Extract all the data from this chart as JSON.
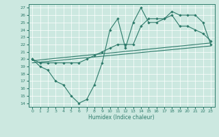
{
  "xlabel": "Humidex (Indice chaleur)",
  "xlim": [
    -0.5,
    23.5
  ],
  "ylim": [
    13.5,
    27.5
  ],
  "xticks": [
    0,
    1,
    2,
    3,
    4,
    5,
    6,
    7,
    8,
    9,
    10,
    11,
    12,
    13,
    14,
    15,
    16,
    17,
    18,
    19,
    20,
    21,
    22,
    23
  ],
  "yticks": [
    14,
    15,
    16,
    17,
    18,
    19,
    20,
    21,
    22,
    23,
    24,
    25,
    26,
    27
  ],
  "bg_color": "#cce8e0",
  "line_color": "#2d7a6a",
  "series": {
    "zigzag": {
      "x": [
        0,
        1,
        2,
        3,
        4,
        5,
        6,
        7,
        8,
        9,
        10,
        11,
        12,
        13,
        14,
        15,
        16,
        17,
        18,
        19,
        20,
        21,
        22,
        23
      ],
      "y": [
        20,
        19,
        18.5,
        17,
        16.5,
        15,
        14,
        14.5,
        16.5,
        19.5,
        24,
        25.5,
        21.5,
        25,
        27,
        25,
        25,
        25.5,
        26,
        24.5,
        24.5,
        24,
        23.5,
        22.5
      ]
    },
    "smooth": {
      "x": [
        0,
        1,
        2,
        3,
        4,
        5,
        6,
        7,
        8,
        9,
        10,
        11,
        12,
        13,
        14,
        15,
        16,
        17,
        18,
        19,
        20,
        21,
        22,
        23
      ],
      "y": [
        20,
        19.5,
        19.5,
        19.5,
        19.5,
        19.5,
        19.5,
        20,
        20.5,
        21,
        21.5,
        22,
        22,
        22,
        24.5,
        25.5,
        25.5,
        25.5,
        26.5,
        26,
        26,
        26,
        25,
        22
      ]
    },
    "reg1": {
      "x": [
        0,
        23
      ],
      "y": [
        19.8,
        22.2
      ]
    },
    "reg2": {
      "x": [
        0,
        23
      ],
      "y": [
        19.5,
        21.8
      ]
    }
  }
}
